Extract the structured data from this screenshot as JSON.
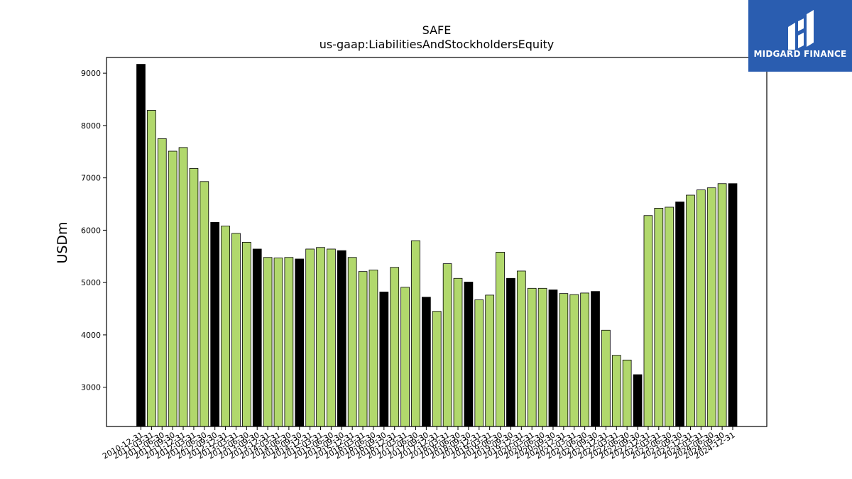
{
  "chart_data": {
    "type": "bar",
    "title": "SAFE",
    "subtitle": "us-gaap:LiabilitiesAndStockholdersEquity",
    "ylabel": "USDm",
    "xlabel": "",
    "ylim": [
      2250,
      9300
    ],
    "yticks": [
      3000,
      4000,
      5000,
      6000,
      7000,
      8000,
      9000
    ],
    "grid": false,
    "colors": {
      "fiscal_year_end": "#000000",
      "quarter": "#b1d86c",
      "edge": "#000000"
    },
    "categories": [
      "2010-12-31",
      "2011-03-31",
      "2011-06-30",
      "2011-09-30",
      "2011-12-31",
      "2012-03-31",
      "2012-06-30",
      "2012-09-30",
      "2012-12-31",
      "2013-03-31",
      "2013-06-30",
      "2013-09-30",
      "2013-12-31",
      "2014-03-31",
      "2014-06-30",
      "2014-09-30",
      "2014-12-31",
      "2015-03-31",
      "2015-06-30",
      "2015-09-30",
      "2015-12-31",
      "2016-03-31",
      "2016-06-30",
      "2016-09-30",
      "2016-12-31",
      "2017-03-31",
      "2017-06-30",
      "2017-09-30",
      "2017-12-31",
      "2018-03-31",
      "2018-06-30",
      "2018-09-30",
      "2018-12-31",
      "2019-03-31",
      "2019-06-30",
      "2019-09-30",
      "2019-12-31",
      "2020-03-31",
      "2020-06-30",
      "2020-09-30",
      "2020-12-31",
      "2021-03-31",
      "2021-06-30",
      "2021-09-30",
      "2021-12-31",
      "2022-03-31",
      "2022-06-30",
      "2022-09-30",
      "2022-12-31",
      "2023-03-31",
      "2023-06-30",
      "2023-09-30",
      "2023-12-31",
      "2024-03-31",
      "2024-06-30",
      "2024-09-30",
      "2024-12-31"
    ],
    "values": [
      9170,
      8290,
      7750,
      7510,
      7580,
      7180,
      6930,
      6150,
      6080,
      5940,
      5770,
      5640,
      5480,
      5470,
      5480,
      5450,
      5640,
      5670,
      5640,
      5610,
      5480,
      5210,
      5240,
      4820,
      5290,
      4910,
      5800,
      4720,
      4450,
      5360,
      5080,
      5010,
      4670,
      4760,
      5580,
      5080,
      5220,
      4890,
      4890,
      4860,
      4790,
      4770,
      4800,
      4830,
      4090,
      3610,
      3520,
      3240,
      6280,
      6420,
      6440,
      6540,
      6670,
      6770,
      6810,
      6890,
      6890
    ],
    "fiscal_year_end": [
      true,
      false,
      false,
      false,
      false,
      false,
      false,
      true,
      false,
      false,
      false,
      true,
      false,
      false,
      false,
      true,
      false,
      false,
      false,
      true,
      false,
      false,
      false,
      true,
      false,
      false,
      false,
      true,
      false,
      false,
      false,
      true,
      false,
      false,
      false,
      true,
      false,
      false,
      false,
      true,
      false,
      false,
      false,
      true,
      false,
      false,
      false,
      true,
      false,
      false,
      false,
      true,
      false,
      false,
      false,
      false,
      true
    ]
  },
  "logo": {
    "text": "MIDGARD FINANCE"
  }
}
